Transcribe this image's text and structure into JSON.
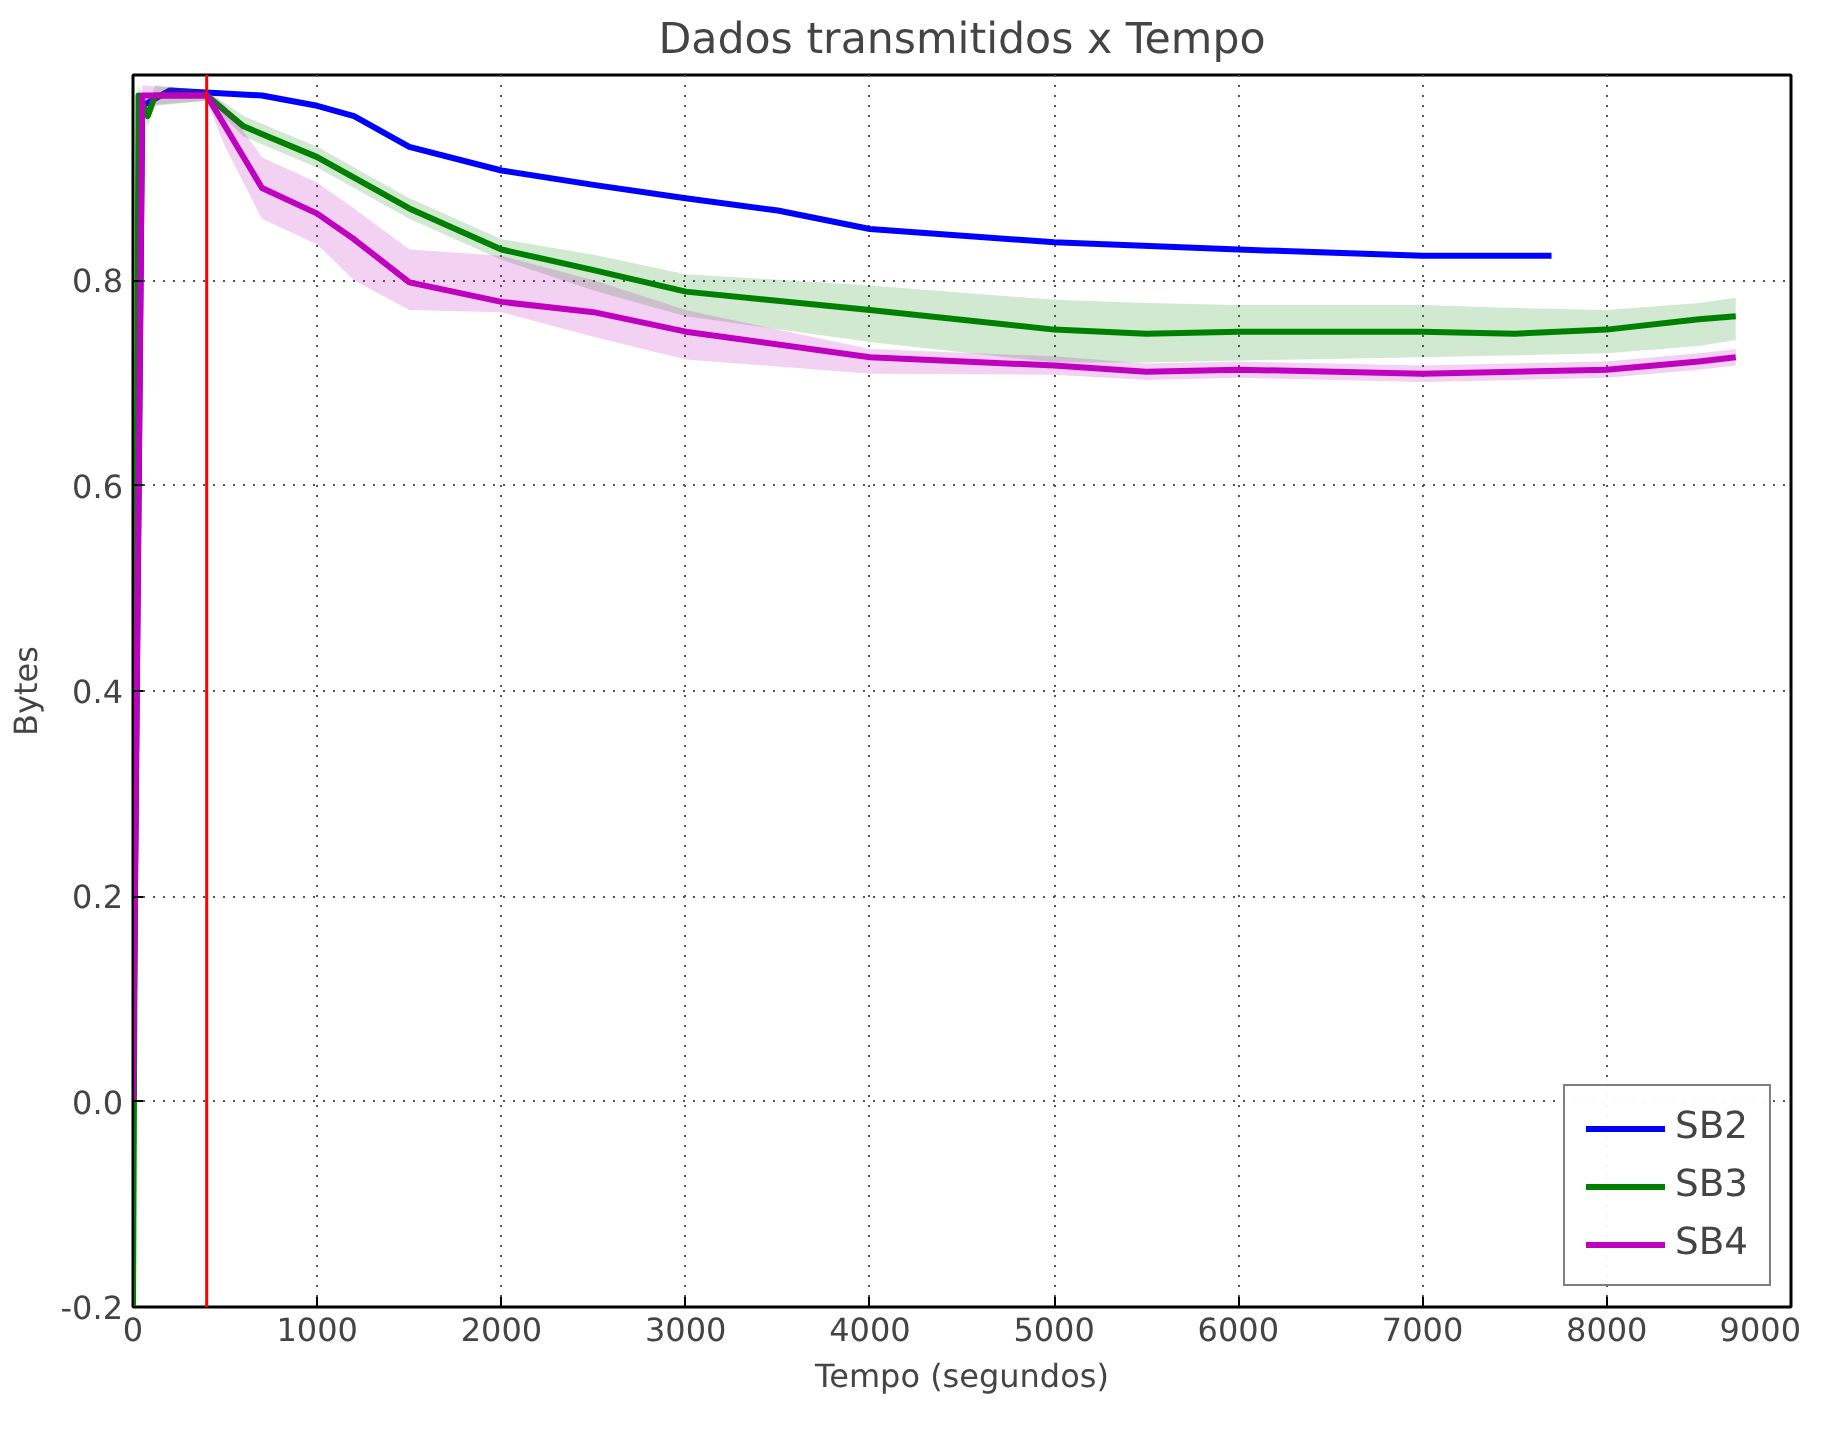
{
  "chart_data": {
    "type": "line",
    "title": "Dados transmitidos x Tempo",
    "xlabel": "Tempo (segundos)",
    "ylabel": "Bytes",
    "xlim": [
      0,
      9000
    ],
    "ylim": [
      -0.2,
      1.0
    ],
    "xticks": [
      0,
      1000,
      2000,
      3000,
      4000,
      5000,
      6000,
      7000,
      8000,
      9000
    ],
    "yticks": [
      -0.2,
      {
        "value": 0,
        "label": "0.0"
      },
      0.2,
      0.4,
      0.6,
      0.8
    ],
    "grid": true,
    "legend": "bottom right",
    "line_style": "solid",
    "marker": "none",
    "ref_lines": [
      {
        "axis": "x",
        "value": 400,
        "label": null,
        "color": "#ff0000"
      }
    ],
    "series": [
      {
        "name": "SB2",
        "color": "#0000ff",
        "x": [
          0,
          50,
          200,
          700,
          1000,
          1200,
          1500,
          2000,
          2500,
          3000,
          3500,
          4000,
          5000,
          6000,
          7000,
          7700
        ],
        "values": [
          0.0,
          0.97,
          0.985,
          0.98,
          0.97,
          0.96,
          0.93,
          0.907,
          0.893,
          0.88,
          0.868,
          0.85,
          0.837,
          0.83,
          0.824,
          0.824
        ]
      },
      {
        "name": "SB3",
        "color": "#008000",
        "x": [
          0,
          30,
          80,
          120,
          400,
          600,
          1000,
          1300,
          1500,
          2000,
          2500,
          3000,
          4000,
          5000,
          5500,
          6000,
          7000,
          7500,
          8000,
          8500,
          8700
        ],
        "values": [
          -0.2,
          0.98,
          0.96,
          0.98,
          0.98,
          0.95,
          0.92,
          0.89,
          0.87,
          0.83,
          0.81,
          0.789,
          0.771,
          0.752,
          0.748,
          0.75,
          0.75,
          0.748,
          0.752,
          0.762,
          0.765
        ],
        "lower": [
          -0.2,
          0.97,
          0.95,
          0.97,
          0.975,
          0.94,
          0.91,
          0.88,
          0.86,
          0.82,
          0.79,
          0.765,
          0.74,
          0.72,
          0.72,
          0.722,
          0.725,
          0.727,
          0.729,
          0.736,
          0.742
        ],
        "upper": [
          -0.2,
          0.99,
          0.97,
          0.99,
          0.985,
          0.96,
          0.93,
          0.9,
          0.88,
          0.84,
          0.825,
          0.806,
          0.795,
          0.781,
          0.778,
          0.776,
          0.776,
          0.773,
          0.771,
          0.778,
          0.783
        ]
      },
      {
        "name": "SB4",
        "color": "#bf00bf",
        "x": [
          0,
          50,
          400,
          500,
          700,
          1000,
          1200,
          1500,
          2000,
          2500,
          3000,
          4000,
          5000,
          5500,
          6000,
          7000,
          8000,
          8500,
          8700
        ],
        "values": [
          0.0,
          0.98,
          0.98,
          0.95,
          0.89,
          0.865,
          0.84,
          0.798,
          0.779,
          0.769,
          0.75,
          0.725,
          0.717,
          0.711,
          0.713,
          0.709,
          0.713,
          0.721,
          0.725
        ],
        "lower": [
          0.0,
          0.97,
          0.975,
          0.93,
          0.86,
          0.835,
          0.8,
          0.771,
          0.769,
          0.745,
          0.723,
          0.709,
          0.708,
          0.703,
          0.705,
          0.701,
          0.705,
          0.713,
          0.717
        ],
        "upper": [
          0.0,
          0.99,
          0.985,
          0.97,
          0.92,
          0.895,
          0.87,
          0.83,
          0.824,
          0.8,
          0.771,
          0.733,
          0.726,
          0.719,
          0.721,
          0.717,
          0.721,
          0.729,
          0.733
        ]
      }
    ]
  }
}
